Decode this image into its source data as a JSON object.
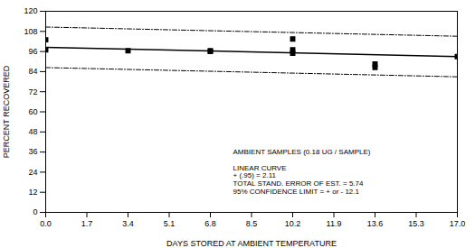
{
  "chart_data": {
    "type": "line",
    "xlabel": "DAYS STORED AT AMBIENT TEMPERATURE",
    "ylabel": "PERCENT RECOVERED",
    "xlim": [
      0.0,
      17.0
    ],
    "ylim": [
      0,
      120
    ],
    "xticks": [
      {
        "value": 0.0,
        "label": "0.0"
      },
      1.7,
      3.4,
      5.1,
      6.8,
      8.5,
      10.2,
      11.9,
      13.6,
      15.3,
      {
        "value": 17.0,
        "label": "17.0"
      }
    ],
    "yticks": [
      0,
      12,
      24,
      36,
      48,
      60,
      72,
      84,
      96,
      108,
      120
    ],
    "grid": false,
    "series": [
      {
        "type": "line",
        "line_style": "dashdot",
        "color": "#000000",
        "x": [
          0.0,
          17.0
        ],
        "values": [
          110.6,
          105.1
        ]
      },
      {
        "type": "line",
        "line_style": "dashdot",
        "color": "#000000",
        "x": [
          0.0,
          17.0
        ],
        "values": [
          86.4,
          80.9
        ]
      },
      {
        "type": "line",
        "line_style": "solid",
        "color": "#000000",
        "x": [
          0.0,
          17.0
        ],
        "values": [
          98.5,
          93.0
        ]
      },
      {
        "type": "scatter",
        "marker": "square",
        "color": "#000000",
        "x": [
          0.0,
          0.0,
          3.4,
          6.8,
          6.8,
          10.2,
          10.2,
          10.2,
          13.6,
          13.6,
          17.0
        ],
        "values": [
          103.0,
          97.0,
          96.5,
          96.5,
          96.0,
          103.5,
          97.0,
          95.0,
          88.5,
          86.5,
          93.0
        ]
      }
    ],
    "annotations": [
      "AMBIENT SAMPLES (0.18 UG / SAMPLE)",
      "LINEAR CURVE",
      "+ (.95) = 2.11",
      "TOTAL STAND. ERROR OF EST. = 5.74",
      "95% CONFIDENCE LIMIT = + or - 12.1"
    ]
  }
}
